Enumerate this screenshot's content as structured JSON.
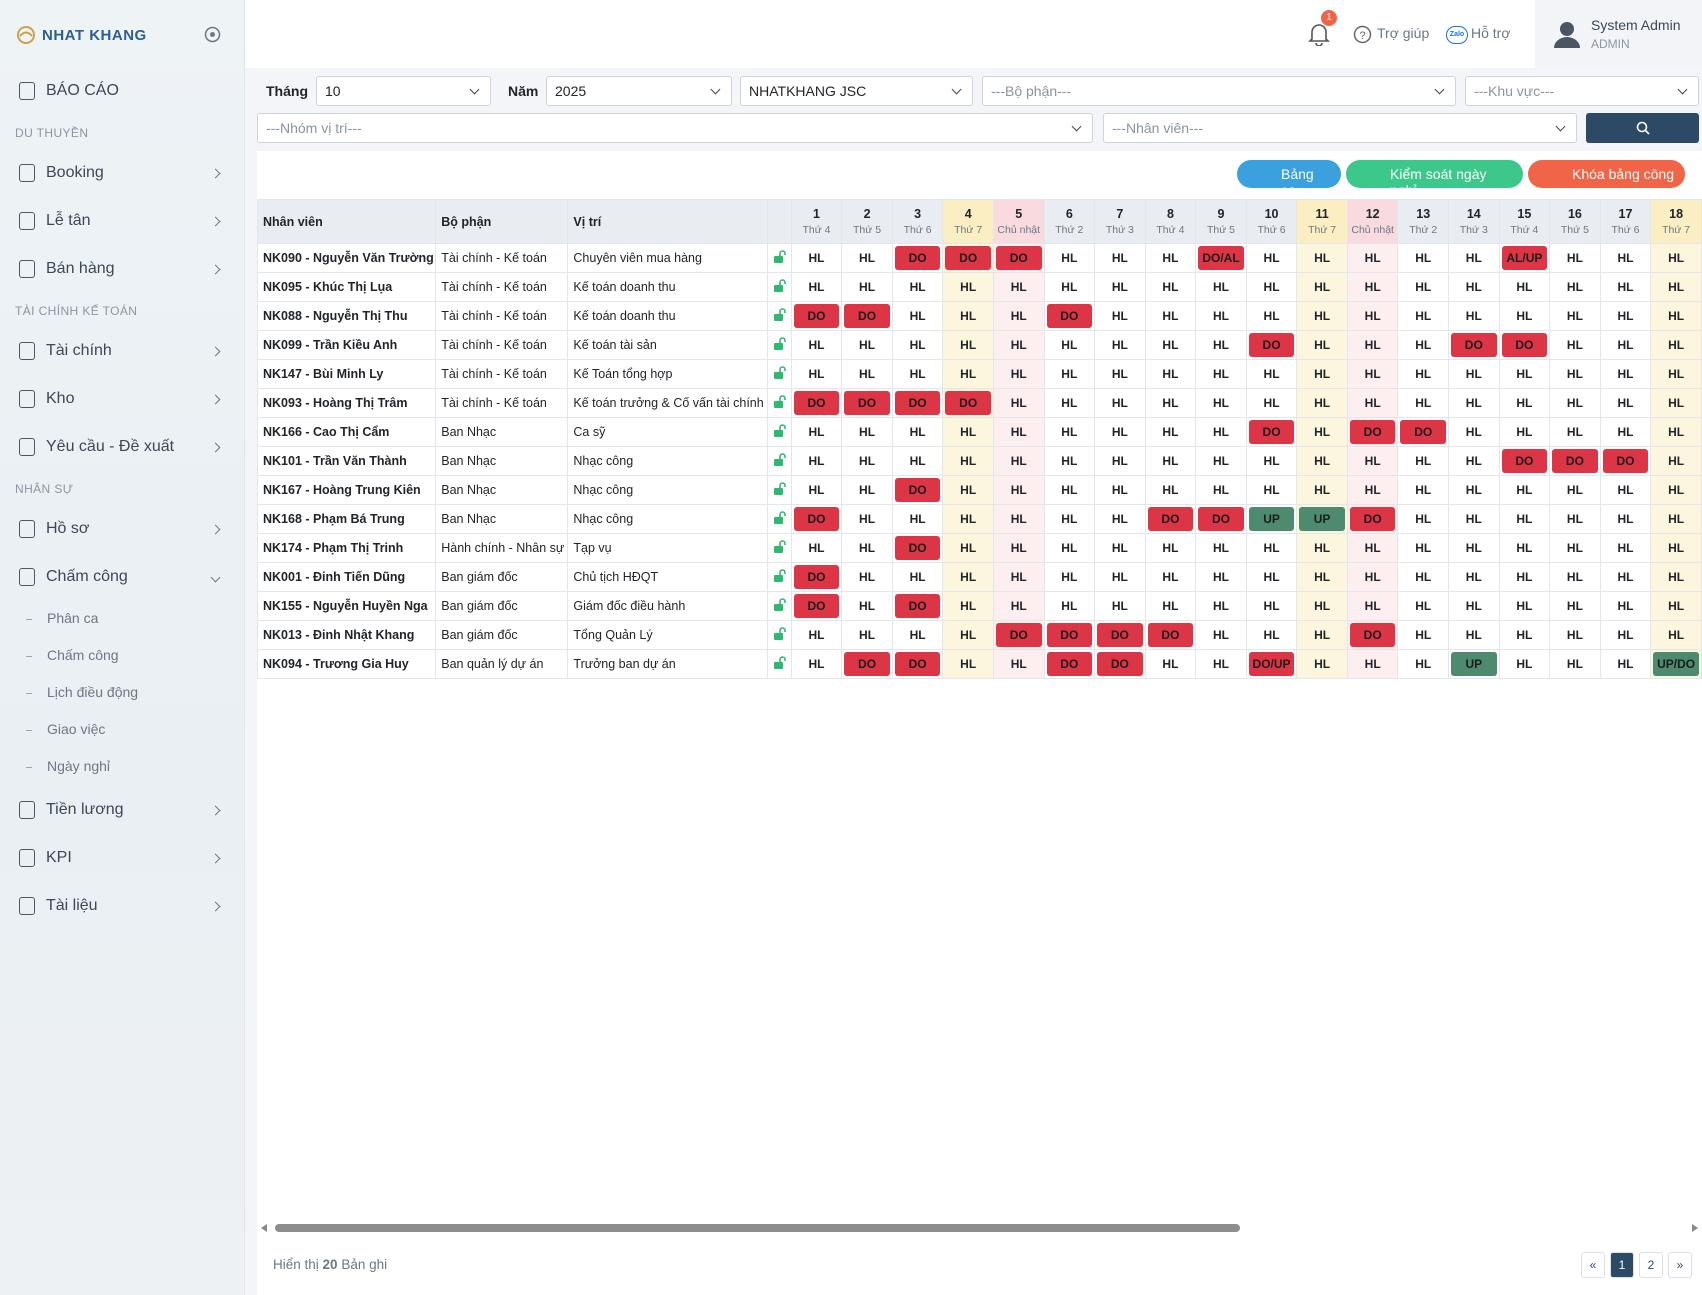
{
  "sidebar": {
    "brand": "NHAT KHANG",
    "report": "BÁO CÁO",
    "sections": [
      {
        "title": "DU THUYỀN",
        "items": [
          "Booking",
          "Lễ tân",
          "Bán hàng"
        ]
      },
      {
        "title": "TÀI CHÍNH KẾ TOÁN",
        "items": [
          "Tài chính",
          "Kho",
          "Yêu cầu - Đề xuất"
        ]
      },
      {
        "title": "NHÂN SỰ",
        "items": [
          "Hồ sơ",
          "Chấm công"
        ]
      }
    ],
    "submenu": [
      "Phân ca",
      "Chấm công",
      "Lịch điều động",
      "Giao việc",
      "Ngày nghỉ"
    ],
    "more": [
      "Tiền lương",
      "KPI",
      "Tài liệu"
    ]
  },
  "header": {
    "notifications": "1",
    "help": "Trợ giúp",
    "zalo_icon": "Zalo",
    "support": "Hỗ trợ",
    "user_name": "System Admin",
    "user_role": "ADMIN"
  },
  "filters": {
    "month_label": "Tháng",
    "month": "10",
    "year_label": "Năm",
    "year": "2025",
    "company": "NHATKHANG JSC",
    "department": "---Bộ phận---",
    "area": "---Khu vực---",
    "position_group": "---Nhóm vị trí---",
    "employee": "---Nhân viên---"
  },
  "buttons": [
    "Bảng ca",
    "Kiểm soát ngày nghỉ",
    "Khóa bảng công"
  ],
  "table": {
    "columns": [
      "Nhân viên",
      "Bộ phận",
      "Vị trí"
    ],
    "days": [
      {
        "day": 1,
        "weekday": "Thứ 4"
      },
      {
        "day": 2,
        "weekday": "Thứ 5"
      },
      {
        "day": 3,
        "weekday": "Thứ 6"
      },
      {
        "day": 4,
        "weekday": "Thứ 7"
      },
      {
        "day": 5,
        "weekday": "Chủ nhật"
      },
      {
        "day": 6,
        "weekday": "Thứ 2"
      },
      {
        "day": 7,
        "weekday": "Thứ 3"
      },
      {
        "day": 8,
        "weekday": "Thứ 4"
      },
      {
        "day": 9,
        "weekday": "Thứ 5"
      },
      {
        "day": 10,
        "weekday": "Thứ 6"
      },
      {
        "day": 11,
        "weekday": "Thứ 7"
      },
      {
        "day": 12,
        "weekday": "Chủ nhật"
      },
      {
        "day": 13,
        "weekday": "Thứ 2"
      },
      {
        "day": 14,
        "weekday": "Thứ 3"
      },
      {
        "day": 15,
        "weekday": "Thứ 4"
      },
      {
        "day": 16,
        "weekday": "Thứ 5"
      },
      {
        "day": 17,
        "weekday": "Thứ 6"
      },
      {
        "day": 18,
        "weekday": "Thứ 7"
      }
    ],
    "rows": [
      {
        "employee": "NK090 - Nguyễn Văn Trường",
        "department": "Tài chính - Kế toán",
        "position": "Chuyên viên mua hàng",
        "cells": [
          "HL",
          "HL",
          "DO",
          "DO",
          "DO",
          "HL",
          "HL",
          "HL",
          "DO/AL",
          "HL",
          "HL",
          "HL",
          "HL",
          "HL",
          "AL/UP",
          "HL",
          "HL",
          "HL"
        ]
      },
      {
        "employee": "NK095 - Khúc Thị Lụa",
        "department": "Tài chính - Kế toán",
        "position": "Kế toán doanh thu",
        "cells": [
          "HL",
          "HL",
          "HL",
          "HL",
          "HL",
          "HL",
          "HL",
          "HL",
          "HL",
          "HL",
          "HL",
          "HL",
          "HL",
          "HL",
          "HL",
          "HL",
          "HL",
          "HL"
        ]
      },
      {
        "employee": "NK088 - Nguyễn Thị Thu",
        "department": "Tài chính - Kế toán",
        "position": "Kế toán doanh thu",
        "cells": [
          "DO",
          "DO",
          "HL",
          "HL",
          "HL",
          "DO",
          "HL",
          "HL",
          "HL",
          "HL",
          "HL",
          "HL",
          "HL",
          "HL",
          "HL",
          "HL",
          "HL",
          "HL"
        ]
      },
      {
        "employee": "NK099 - Trần Kiều Anh",
        "department": "Tài chính - Kế toán",
        "position": "Kế toán tài sản",
        "cells": [
          "HL",
          "HL",
          "HL",
          "HL",
          "HL",
          "HL",
          "HL",
          "HL",
          "HL",
          "DO",
          "HL",
          "HL",
          "HL",
          "DO",
          "DO",
          "HL",
          "HL",
          "HL"
        ]
      },
      {
        "employee": "NK147 - Bùi Minh Ly",
        "department": "Tài chính - Kế toán",
        "position": "Kế Toán tổng hợp",
        "cells": [
          "HL",
          "HL",
          "HL",
          "HL",
          "HL",
          "HL",
          "HL",
          "HL",
          "HL",
          "HL",
          "HL",
          "HL",
          "HL",
          "HL",
          "HL",
          "HL",
          "HL",
          "HL"
        ]
      },
      {
        "employee": "NK093 - Hoàng Thị Trâm",
        "department": "Tài chính - Kế toán",
        "position": "Kế toán trưởng & Cố vấn tài chính",
        "cells": [
          "DO",
          "DO",
          "DO",
          "DO",
          "HL",
          "HL",
          "HL",
          "HL",
          "HL",
          "HL",
          "HL",
          "HL",
          "HL",
          "HL",
          "HL",
          "HL",
          "HL",
          "HL"
        ]
      },
      {
        "employee": "NK166 - Cao Thị Cẩm",
        "department": "Ban Nhạc",
        "position": "Ca sỹ",
        "cells": [
          "HL",
          "HL",
          "HL",
          "HL",
          "HL",
          "HL",
          "HL",
          "HL",
          "HL",
          "DO",
          "HL",
          "DO",
          "DO",
          "HL",
          "HL",
          "HL",
          "HL",
          "HL"
        ]
      },
      {
        "employee": "NK101 - Trần Văn Thành",
        "department": "Ban Nhạc",
        "position": "Nhạc công",
        "cells": [
          "HL",
          "HL",
          "HL",
          "HL",
          "HL",
          "HL",
          "HL",
          "HL",
          "HL",
          "HL",
          "HL",
          "HL",
          "HL",
          "HL",
          "DO",
          "DO",
          "DO",
          "HL"
        ]
      },
      {
        "employee": "NK167 - Hoàng Trung Kiên",
        "department": "Ban Nhạc",
        "position": "Nhạc công",
        "cells": [
          "HL",
          "HL",
          "DO",
          "HL",
          "HL",
          "HL",
          "HL",
          "HL",
          "HL",
          "HL",
          "HL",
          "HL",
          "HL",
          "HL",
          "HL",
          "HL",
          "HL",
          "HL"
        ]
      },
      {
        "employee": "NK168 - Phạm Bá Trung",
        "department": "Ban Nhạc",
        "position": "Nhạc công",
        "cells": [
          "DO",
          "HL",
          "HL",
          "HL",
          "HL",
          "HL",
          "HL",
          "DO",
          "DO",
          "UP",
          "UP",
          "DO",
          "HL",
          "HL",
          "HL",
          "HL",
          "HL",
          "HL"
        ]
      },
      {
        "employee": "NK174 - Phạm Thị Trinh",
        "department": "Hành chính - Nhân sự",
        "position": "Tạp vụ",
        "cells": [
          "HL",
          "HL",
          "DO",
          "HL",
          "HL",
          "HL",
          "HL",
          "HL",
          "HL",
          "HL",
          "HL",
          "HL",
          "HL",
          "HL",
          "HL",
          "HL",
          "HL",
          "HL"
        ]
      },
      {
        "employee": "NK001 - Đinh Tiến Dũng",
        "department": "Ban giám đốc",
        "position": "Chủ tịch HĐQT",
        "cells": [
          "DO",
          "HL",
          "HL",
          "HL",
          "HL",
          "HL",
          "HL",
          "HL",
          "HL",
          "HL",
          "HL",
          "HL",
          "HL",
          "HL",
          "HL",
          "HL",
          "HL",
          "HL"
        ]
      },
      {
        "employee": "NK155 - Nguyễn Huyền Nga",
        "department": "Ban giám đốc",
        "position": "Giám đốc điều hành",
        "cells": [
          "DO",
          "HL",
          "DO",
          "HL",
          "HL",
          "HL",
          "HL",
          "HL",
          "HL",
          "HL",
          "HL",
          "HL",
          "HL",
          "HL",
          "HL",
          "HL",
          "HL",
          "HL"
        ]
      },
      {
        "employee": "NK013 - Đinh Nhật Khang",
        "department": "Ban giám đốc",
        "position": "Tổng Quản Lý",
        "cells": [
          "HL",
          "HL",
          "HL",
          "HL",
          "DO",
          "DO",
          "DO",
          "DO",
          "HL",
          "HL",
          "HL",
          "DO",
          "HL",
          "HL",
          "HL",
          "HL",
          "HL",
          "HL"
        ]
      },
      {
        "employee": "NK094 - Trương Gia Huy",
        "department": "Ban quản lý dự án",
        "position": "Trưởng ban dự án",
        "cells": [
          "HL",
          "DO",
          "DO",
          "HL",
          "HL",
          "DO",
          "DO",
          "HL",
          "HL",
          "DO/UP",
          "HL",
          "HL",
          "HL",
          "UP",
          "HL",
          "HL",
          "HL",
          "UP/DO"
        ]
      }
    ]
  },
  "footer": {
    "showing": "Hiển thị",
    "count": "20",
    "records": "Bản ghi",
    "pages": [
      "«",
      "1",
      "2",
      "»"
    ]
  }
}
